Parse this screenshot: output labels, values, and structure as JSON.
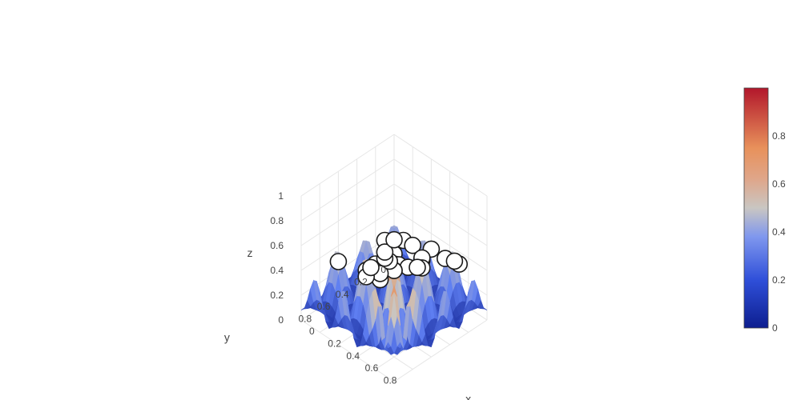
{
  "chart_data": {
    "type": "surface",
    "title": "",
    "axes": {
      "x": {
        "label": "x",
        "range": [
          0,
          1
        ],
        "ticks": [
          "0",
          "0.2",
          "0.4",
          "0.6",
          "0.8"
        ]
      },
      "y": {
        "label": "y",
        "range": [
          0,
          1
        ],
        "ticks": [
          "0",
          "0.2",
          "0.4",
          "0.6",
          "0.8"
        ]
      },
      "z": {
        "label": "z",
        "range": [
          0,
          1
        ],
        "ticks": [
          "0",
          "0.2",
          "0.4",
          "0.6",
          "0.8",
          "1"
        ]
      }
    },
    "grid": true,
    "surface": {
      "x_range": [
        0,
        1
      ],
      "y_range": [
        0,
        1
      ],
      "z_range": [
        0,
        1
      ],
      "description_of_shape": "oscillating surface with many local peaks; low values toward front corner, tall peaks near back"
    },
    "markers": [
      {
        "x": 0.95,
        "y": 0.95,
        "z": 0.98
      },
      {
        "x": 0.85,
        "y": 0.75,
        "z": 0.94
      },
      {
        "x": 0.75,
        "y": 0.85,
        "z": 0.94
      },
      {
        "x": 0.9,
        "y": 0.7,
        "z": 0.9
      },
      {
        "x": 0.95,
        "y": 0.55,
        "z": 0.82
      },
      {
        "x": 0.75,
        "y": 0.75,
        "z": 0.7
      },
      {
        "x": 0.65,
        "y": 0.85,
        "z": 0.7
      },
      {
        "x": 0.85,
        "y": 0.55,
        "z": 0.68
      },
      {
        "x": 0.7,
        "y": 0.65,
        "z": 0.62
      },
      {
        "x": 0.55,
        "y": 0.85,
        "z": 0.6
      },
      {
        "x": 0.9,
        "y": 0.35,
        "z": 0.62
      },
      {
        "x": 0.75,
        "y": 0.45,
        "z": 0.6
      },
      {
        "x": 0.35,
        "y": 0.95,
        "z": 0.62
      },
      {
        "x": 0.95,
        "y": 0.25,
        "z": 0.55
      },
      {
        "x": 0.85,
        "y": 0.2,
        "z": 0.5
      },
      {
        "x": 0.6,
        "y": 0.45,
        "z": 0.45
      },
      {
        "x": 0.55,
        "y": 0.55,
        "z": 0.45
      },
      {
        "x": 0.65,
        "y": 0.35,
        "z": 0.42
      },
      {
        "x": 0.45,
        "y": 0.45,
        "z": 0.35
      },
      {
        "x": 0.55,
        "y": 0.3,
        "z": 0.35
      },
      {
        "x": 0.4,
        "y": 0.55,
        "z": 0.3
      },
      {
        "x": 0.35,
        "y": 0.5,
        "z": 0.3
      },
      {
        "x": 0.3,
        "y": 0.35,
        "z": 0.3
      },
      {
        "x": 0.25,
        "y": 0.55,
        "z": 0.25
      },
      {
        "x": 0.2,
        "y": 0.3,
        "z": 0.25
      },
      {
        "x": 0.15,
        "y": 0.4,
        "z": 0.2
      },
      {
        "x": 0.1,
        "y": 0.2,
        "z": 0.2
      },
      {
        "x": 0.05,
        "y": 0.05,
        "z": 0.2
      }
    ],
    "colorbar": {
      "colorscale": [
        "#0d1e8f",
        "#5f7ff2",
        "#c9c6c2",
        "#e8915b",
        "#b2172b"
      ],
      "range": [
        0,
        1
      ],
      "ticks": [
        "0",
        "0.2",
        "0.4",
        "0.6",
        "0.8"
      ]
    }
  }
}
